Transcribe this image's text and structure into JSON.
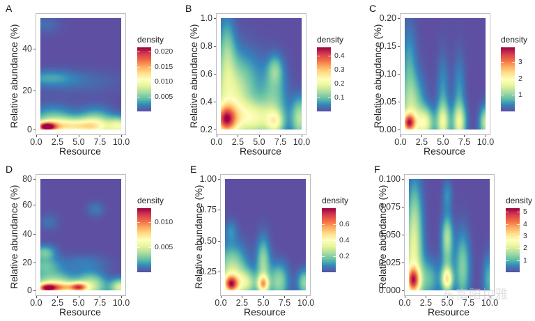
{
  "figure": {
    "watermark": "东富阳拉雅",
    "palette": [
      "#5E4FA2",
      "#3288BD",
      "#66C2A5",
      "#ABDDA4",
      "#E6F598",
      "#FFFFBF",
      "#FEE08B",
      "#FDAE61",
      "#F46D43",
      "#D53E4F",
      "#9E0142"
    ]
  },
  "chart_data": [
    {
      "panel": "A",
      "type": "heatmap",
      "title": "",
      "xlabel": "Resource",
      "ylabel": "Relative abundance (%)",
      "xlim": [
        0.5,
        10
      ],
      "ylim": [
        0.9,
        55
      ],
      "xticks": [
        "0.0",
        "2.5",
        "5.0",
        "7.5",
        "10.0"
      ],
      "xtick_values": [
        0,
        2.5,
        5,
        7.5,
        10
      ],
      "yticks": [
        "0",
        "20",
        "40"
      ],
      "ytick_values": [
        0,
        20,
        40
      ],
      "legend_title": "density",
      "legend_position": "right",
      "legend_labels": [
        "0.005",
        "0.010",
        "0.015",
        "0.020"
      ],
      "legend_values": [
        0.005,
        0.01,
        0.015,
        0.02
      ],
      "density_range": [
        0.0,
        0.0215
      ],
      "peak": {
        "x": 1.2,
        "y": 2.5,
        "density": 0.0215
      },
      "blobs": [
        {
          "x": 1.2,
          "y": 2.2,
          "sx": 0.8,
          "sy": 1.6,
          "w": 0.0165
        },
        {
          "x": 2.0,
          "y": 4.0,
          "sx": 1.8,
          "sy": 5.0,
          "w": 0.006
        },
        {
          "x": 4.5,
          "y": 2.5,
          "sx": 2.5,
          "sy": 2.5,
          "w": 0.009
        },
        {
          "x": 7.0,
          "y": 3.0,
          "sx": 1.4,
          "sy": 5.0,
          "w": 0.007
        },
        {
          "x": 9.8,
          "y": 2.5,
          "sx": 0.9,
          "sy": 3.0,
          "w": 0.008
        },
        {
          "x": 1.5,
          "y": 26.0,
          "sx": 2.0,
          "sy": 2.5,
          "w": 0.0025
        },
        {
          "x": 4.5,
          "y": 24.0,
          "sx": 4.0,
          "sy": 4.0,
          "w": 0.0012
        },
        {
          "x": 1.0,
          "y": 52.0,
          "sx": 1.2,
          "sy": 3.0,
          "w": 0.0012
        }
      ]
    },
    {
      "panel": "B",
      "type": "heatmap",
      "title": "",
      "xlabel": "Resource",
      "ylabel": "Relative abundance (%)",
      "xlim": [
        0.5,
        10
      ],
      "ylim": [
        0.2,
        1.0
      ],
      "xticks": [
        "0.0",
        "2.5",
        "5.0",
        "7.5",
        "10.0"
      ],
      "xtick_values": [
        0,
        2.5,
        5,
        7.5,
        10
      ],
      "yticks": [
        "0.2",
        "0.4",
        "0.6",
        "0.8",
        "1.0"
      ],
      "ytick_values": [
        0.2,
        0.4,
        0.6,
        0.8,
        1.0
      ],
      "legend_title": "density",
      "legend_position": "right",
      "legend_labels": [
        "0.1",
        "0.2",
        "0.3",
        "0.4"
      ],
      "legend_values": [
        0.1,
        0.2,
        0.3,
        0.4
      ],
      "density_range": [
        0.0,
        0.46
      ],
      "peak": {
        "x": 1.1,
        "y": 0.27,
        "density": 0.46
      },
      "blobs": [
        {
          "x": 1.1,
          "y": 0.27,
          "sx": 0.85,
          "sy": 0.07,
          "w": 0.3
        },
        {
          "x": 1.5,
          "y": 0.4,
          "sx": 1.6,
          "sy": 0.2,
          "w": 0.16
        },
        {
          "x": 1.2,
          "y": 0.75,
          "sx": 0.7,
          "sy": 0.18,
          "w": 0.1
        },
        {
          "x": 4.5,
          "y": 0.28,
          "sx": 1.8,
          "sy": 0.09,
          "w": 0.18
        },
        {
          "x": 3.5,
          "y": 0.55,
          "sx": 1.6,
          "sy": 0.15,
          "w": 0.06
        },
        {
          "x": 6.9,
          "y": 0.25,
          "sx": 0.7,
          "sy": 0.06,
          "w": 0.14
        },
        {
          "x": 6.8,
          "y": 0.45,
          "sx": 1.0,
          "sy": 0.15,
          "w": 0.09
        },
        {
          "x": 6.9,
          "y": 0.63,
          "sx": 0.6,
          "sy": 0.07,
          "w": 0.08
        },
        {
          "x": 9.8,
          "y": 0.28,
          "sx": 0.7,
          "sy": 0.1,
          "w": 0.15
        }
      ]
    },
    {
      "panel": "C",
      "type": "heatmap",
      "title": "",
      "xlabel": "Resource",
      "ylabel": "Relative abundance (%)",
      "xlim": [
        0.5,
        10
      ],
      "ylim": [
        0.0,
        0.2
      ],
      "xticks": [
        "0.0",
        "2.5",
        "5.0",
        "7.5",
        "10.0"
      ],
      "xtick_values": [
        0,
        2.5,
        5,
        7.5,
        10
      ],
      "yticks": [
        "0.00",
        "0.05",
        "0.10",
        "0.15",
        "0.20"
      ],
      "ytick_values": [
        0,
        0.05,
        0.1,
        0.15,
        0.2
      ],
      "legend_title": "density",
      "legend_position": "right",
      "legend_labels": [
        "1",
        "2",
        "3"
      ],
      "legend_values": [
        1,
        2,
        3
      ],
      "density_range": [
        0.0,
        3.9
      ],
      "peak": {
        "x": 1.0,
        "y": 0.012,
        "density": 3.9
      },
      "blobs": [
        {
          "x": 1.0,
          "y": 0.012,
          "sx": 0.55,
          "sy": 0.012,
          "w": 2.6
        },
        {
          "x": 1.3,
          "y": 0.03,
          "sx": 1.0,
          "sy": 0.045,
          "w": 1.3
        },
        {
          "x": 1.0,
          "y": 0.12,
          "sx": 0.6,
          "sy": 0.05,
          "w": 0.5
        },
        {
          "x": 2.9,
          "y": 0.012,
          "sx": 0.7,
          "sy": 0.018,
          "w": 1.5
        },
        {
          "x": 5.0,
          "y": 0.012,
          "sx": 0.55,
          "sy": 0.022,
          "w": 1.4
        },
        {
          "x": 5.0,
          "y": 0.06,
          "sx": 0.5,
          "sy": 0.05,
          "w": 0.5
        },
        {
          "x": 6.9,
          "y": 0.012,
          "sx": 0.55,
          "sy": 0.022,
          "w": 1.4
        },
        {
          "x": 6.9,
          "y": 0.06,
          "sx": 0.5,
          "sy": 0.05,
          "w": 0.5
        },
        {
          "x": 10.0,
          "y": 0.012,
          "sx": 0.5,
          "sy": 0.02,
          "w": 1.3
        }
      ]
    },
    {
      "panel": "D",
      "type": "heatmap",
      "title": "",
      "xlabel": "Resource",
      "ylabel": "Relative abundance (%)",
      "xlim": [
        0.5,
        10
      ],
      "ylim": [
        0.9,
        78
      ],
      "xticks": [
        "0.0",
        "2.5",
        "5.0",
        "7.5",
        "10.0"
      ],
      "xtick_values": [
        0,
        2.5,
        5,
        7.5,
        10
      ],
      "yticks": [
        "0",
        "20",
        "40",
        "60",
        "80"
      ],
      "ytick_values": [
        0,
        20,
        40,
        60,
        80
      ],
      "legend_title": "density",
      "legend_position": "right",
      "legend_labels": [
        "0.005",
        "0.010"
      ],
      "legend_values": [
        0.005,
        0.01
      ],
      "density_range": [
        0.0,
        0.0128
      ],
      "peak": {
        "x": 1.3,
        "y": 2.5,
        "density": 0.0128
      },
      "blobs": [
        {
          "x": 1.3,
          "y": 2.5,
          "sx": 0.8,
          "sy": 2.2,
          "w": 0.0095
        },
        {
          "x": 2.0,
          "y": 5.0,
          "sx": 1.8,
          "sy": 6.0,
          "w": 0.0045
        },
        {
          "x": 3.2,
          "y": 2.8,
          "sx": 1.0,
          "sy": 2.5,
          "w": 0.005
        },
        {
          "x": 5.0,
          "y": 3.0,
          "sx": 0.7,
          "sy": 2.3,
          "w": 0.008
        },
        {
          "x": 6.5,
          "y": 4.0,
          "sx": 1.2,
          "sy": 6.0,
          "w": 0.0045
        },
        {
          "x": 9.9,
          "y": 3.0,
          "sx": 0.8,
          "sy": 4.0,
          "w": 0.005
        },
        {
          "x": 1.0,
          "y": 27.0,
          "sx": 0.9,
          "sy": 3.5,
          "w": 0.0028
        },
        {
          "x": 1.0,
          "y": 18.0,
          "sx": 1.2,
          "sy": 4.0,
          "w": 0.0022
        },
        {
          "x": 5.5,
          "y": 20.0,
          "sx": 2.0,
          "sy": 4.0,
          "w": 0.001
        },
        {
          "x": 7.0,
          "y": 57.0,
          "sx": 0.7,
          "sy": 3.5,
          "w": 0.001
        },
        {
          "x": 1.5,
          "y": 48.0,
          "sx": 0.8,
          "sy": 4.0,
          "w": 0.0008
        }
      ]
    },
    {
      "panel": "E",
      "type": "heatmap",
      "title": "",
      "xlabel": "Resource",
      "ylabel": "Relative abundance (%)",
      "xlim": [
        0.5,
        10
      ],
      "ylim": [
        0.1,
        1.0
      ],
      "xticks": [
        "0.0",
        "2.5",
        "5.0",
        "7.5",
        "10.0"
      ],
      "xtick_values": [
        0,
        2.5,
        5,
        7.5,
        10
      ],
      "yticks": [
        "0.25",
        "0.50",
        "0.75",
        "1.00"
      ],
      "ytick_values": [
        0.25,
        0.5,
        0.75,
        1.0
      ],
      "legend_title": "density",
      "legend_position": "right",
      "legend_labels": [
        "0.2",
        "0.4",
        "0.6"
      ],
      "legend_values": [
        0.2,
        0.4,
        0.6
      ],
      "density_range": [
        0.0,
        0.8
      ],
      "peak": {
        "x": 1.2,
        "y": 0.15,
        "density": 0.8
      },
      "blobs": [
        {
          "x": 1.2,
          "y": 0.15,
          "sx": 0.6,
          "sy": 0.05,
          "w": 0.55
        },
        {
          "x": 1.3,
          "y": 0.25,
          "sx": 1.2,
          "sy": 0.14,
          "w": 0.28
        },
        {
          "x": 3.0,
          "y": 0.16,
          "sx": 0.9,
          "sy": 0.07,
          "w": 0.25
        },
        {
          "x": 5.0,
          "y": 0.15,
          "sx": 0.45,
          "sy": 0.05,
          "w": 0.45
        },
        {
          "x": 5.0,
          "y": 0.32,
          "sx": 0.55,
          "sy": 0.14,
          "w": 0.22
        },
        {
          "x": 6.8,
          "y": 0.17,
          "sx": 0.8,
          "sy": 0.1,
          "w": 0.22
        },
        {
          "x": 1.2,
          "y": 0.58,
          "sx": 0.5,
          "sy": 0.06,
          "w": 0.08
        },
        {
          "x": 9.9,
          "y": 0.16,
          "sx": 0.6,
          "sy": 0.07,
          "w": 0.22
        }
      ]
    },
    {
      "panel": "F",
      "type": "heatmap",
      "title": "",
      "xlabel": "Resource",
      "ylabel": "Relative abundance (%)",
      "xlim": [
        0.5,
        10
      ],
      "ylim": [
        0.0,
        0.1
      ],
      "xticks": [
        "0.0",
        "2.5",
        "5.0",
        "7.5",
        "10.0"
      ],
      "xtick_values": [
        0,
        2.5,
        5,
        7.5,
        10
      ],
      "yticks": [
        "0.000",
        "0.025",
        "0.050",
        "0.075",
        "0.100"
      ],
      "ytick_values": [
        0,
        0.025,
        0.05,
        0.075,
        0.1
      ],
      "legend_title": "density",
      "legend_position": "right",
      "legend_labels": [
        "1",
        "2",
        "3",
        "4",
        "5"
      ],
      "legend_values": [
        1,
        2,
        3,
        4,
        5
      ],
      "density_range": [
        0.0,
        5.3
      ],
      "peak": {
        "x": 1.0,
        "y": 0.009,
        "density": 5.3
      },
      "blobs": [
        {
          "x": 1.0,
          "y": 0.009,
          "sx": 0.55,
          "sy": 0.008,
          "w": 3.3
        },
        {
          "x": 1.0,
          "y": 0.025,
          "sx": 0.75,
          "sy": 0.03,
          "w": 2.0
        },
        {
          "x": 1.2,
          "y": 0.07,
          "sx": 0.6,
          "sy": 0.025,
          "w": 0.9
        },
        {
          "x": 2.8,
          "y": 0.01,
          "sx": 0.9,
          "sy": 0.012,
          "w": 1.0
        },
        {
          "x": 5.0,
          "y": 0.01,
          "sx": 0.45,
          "sy": 0.007,
          "w": 2.4
        },
        {
          "x": 5.0,
          "y": 0.05,
          "sx": 0.45,
          "sy": 0.012,
          "w": 1.2
        },
        {
          "x": 5.0,
          "y": 0.085,
          "sx": 0.4,
          "sy": 0.01,
          "w": 0.6
        },
        {
          "x": 5.0,
          "y": 0.025,
          "sx": 0.5,
          "sy": 0.02,
          "w": 0.9
        },
        {
          "x": 6.8,
          "y": 0.02,
          "sx": 0.6,
          "sy": 0.022,
          "w": 1.3
        },
        {
          "x": 9.9,
          "y": 0.01,
          "sx": 0.5,
          "sy": 0.015,
          "w": 0.9
        }
      ]
    }
  ]
}
